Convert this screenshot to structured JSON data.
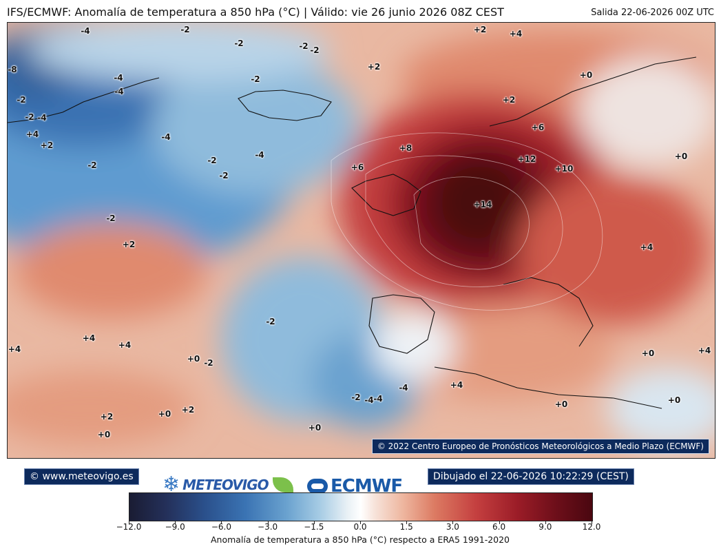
{
  "header": {
    "title": "IFS/ECMWF: Anomalía de temperatura a 850 hPa (°C) | Válido: vie 26 junio 2026 08Z CEST",
    "run_info": "Salida 22-06-2026 00Z UTC"
  },
  "map": {
    "copyright": "© 2022 Centro Europeo de Pronósticos Meteorológicos a Medio Plazo (ECMWF)",
    "contour_labels": [
      "-4",
      "-2",
      "-2",
      "-2",
      "-2",
      "-2",
      "-8",
      "-4",
      "-2",
      "-4",
      "-2",
      "-4",
      "+4",
      "+2",
      "-4",
      "-4",
      "-2",
      "-2",
      "-2",
      "+2",
      "+2",
      "+2",
      "-2",
      "+6",
      "+8",
      "+12",
      "+10",
      "+14",
      "+6",
      "+4",
      "+2",
      "+4",
      "+4",
      "+4",
      "+0",
      "-2",
      "-2",
      "+4",
      "-4",
      "-2",
      "-4",
      "+2",
      "+0",
      "+2",
      "+0",
      "+0",
      "+4",
      "+0",
      "+0",
      "+0",
      "+0",
      "-4",
      "+4",
      "+0"
    ]
  },
  "footer": {
    "website": "© www.meteovigo.es",
    "drawn": "Dibujado el 22-06-2026 10:22:29 (CEST)",
    "logo_meteovigo": "METEOVIGO",
    "logo_ecmwf": "ECMWF"
  },
  "colorbar": {
    "title": "Anomalía de temperatura a 850 hPa (°C) respecto a ERA5 1991-2020",
    "ticks": [
      "−12.0",
      "−9.0",
      "−6.0",
      "−3.0",
      "−1.5",
      "0.0",
      "1.5",
      "3.0",
      "6.0",
      "9.0",
      "12.0"
    ],
    "range": [
      -12,
      12
    ],
    "colors": {
      "cold": "#1a1c33",
      "cool": "#3a73b3",
      "neutral": "#ffffff",
      "warm": "#dc7a62",
      "hot": "#4a0710"
    }
  }
}
